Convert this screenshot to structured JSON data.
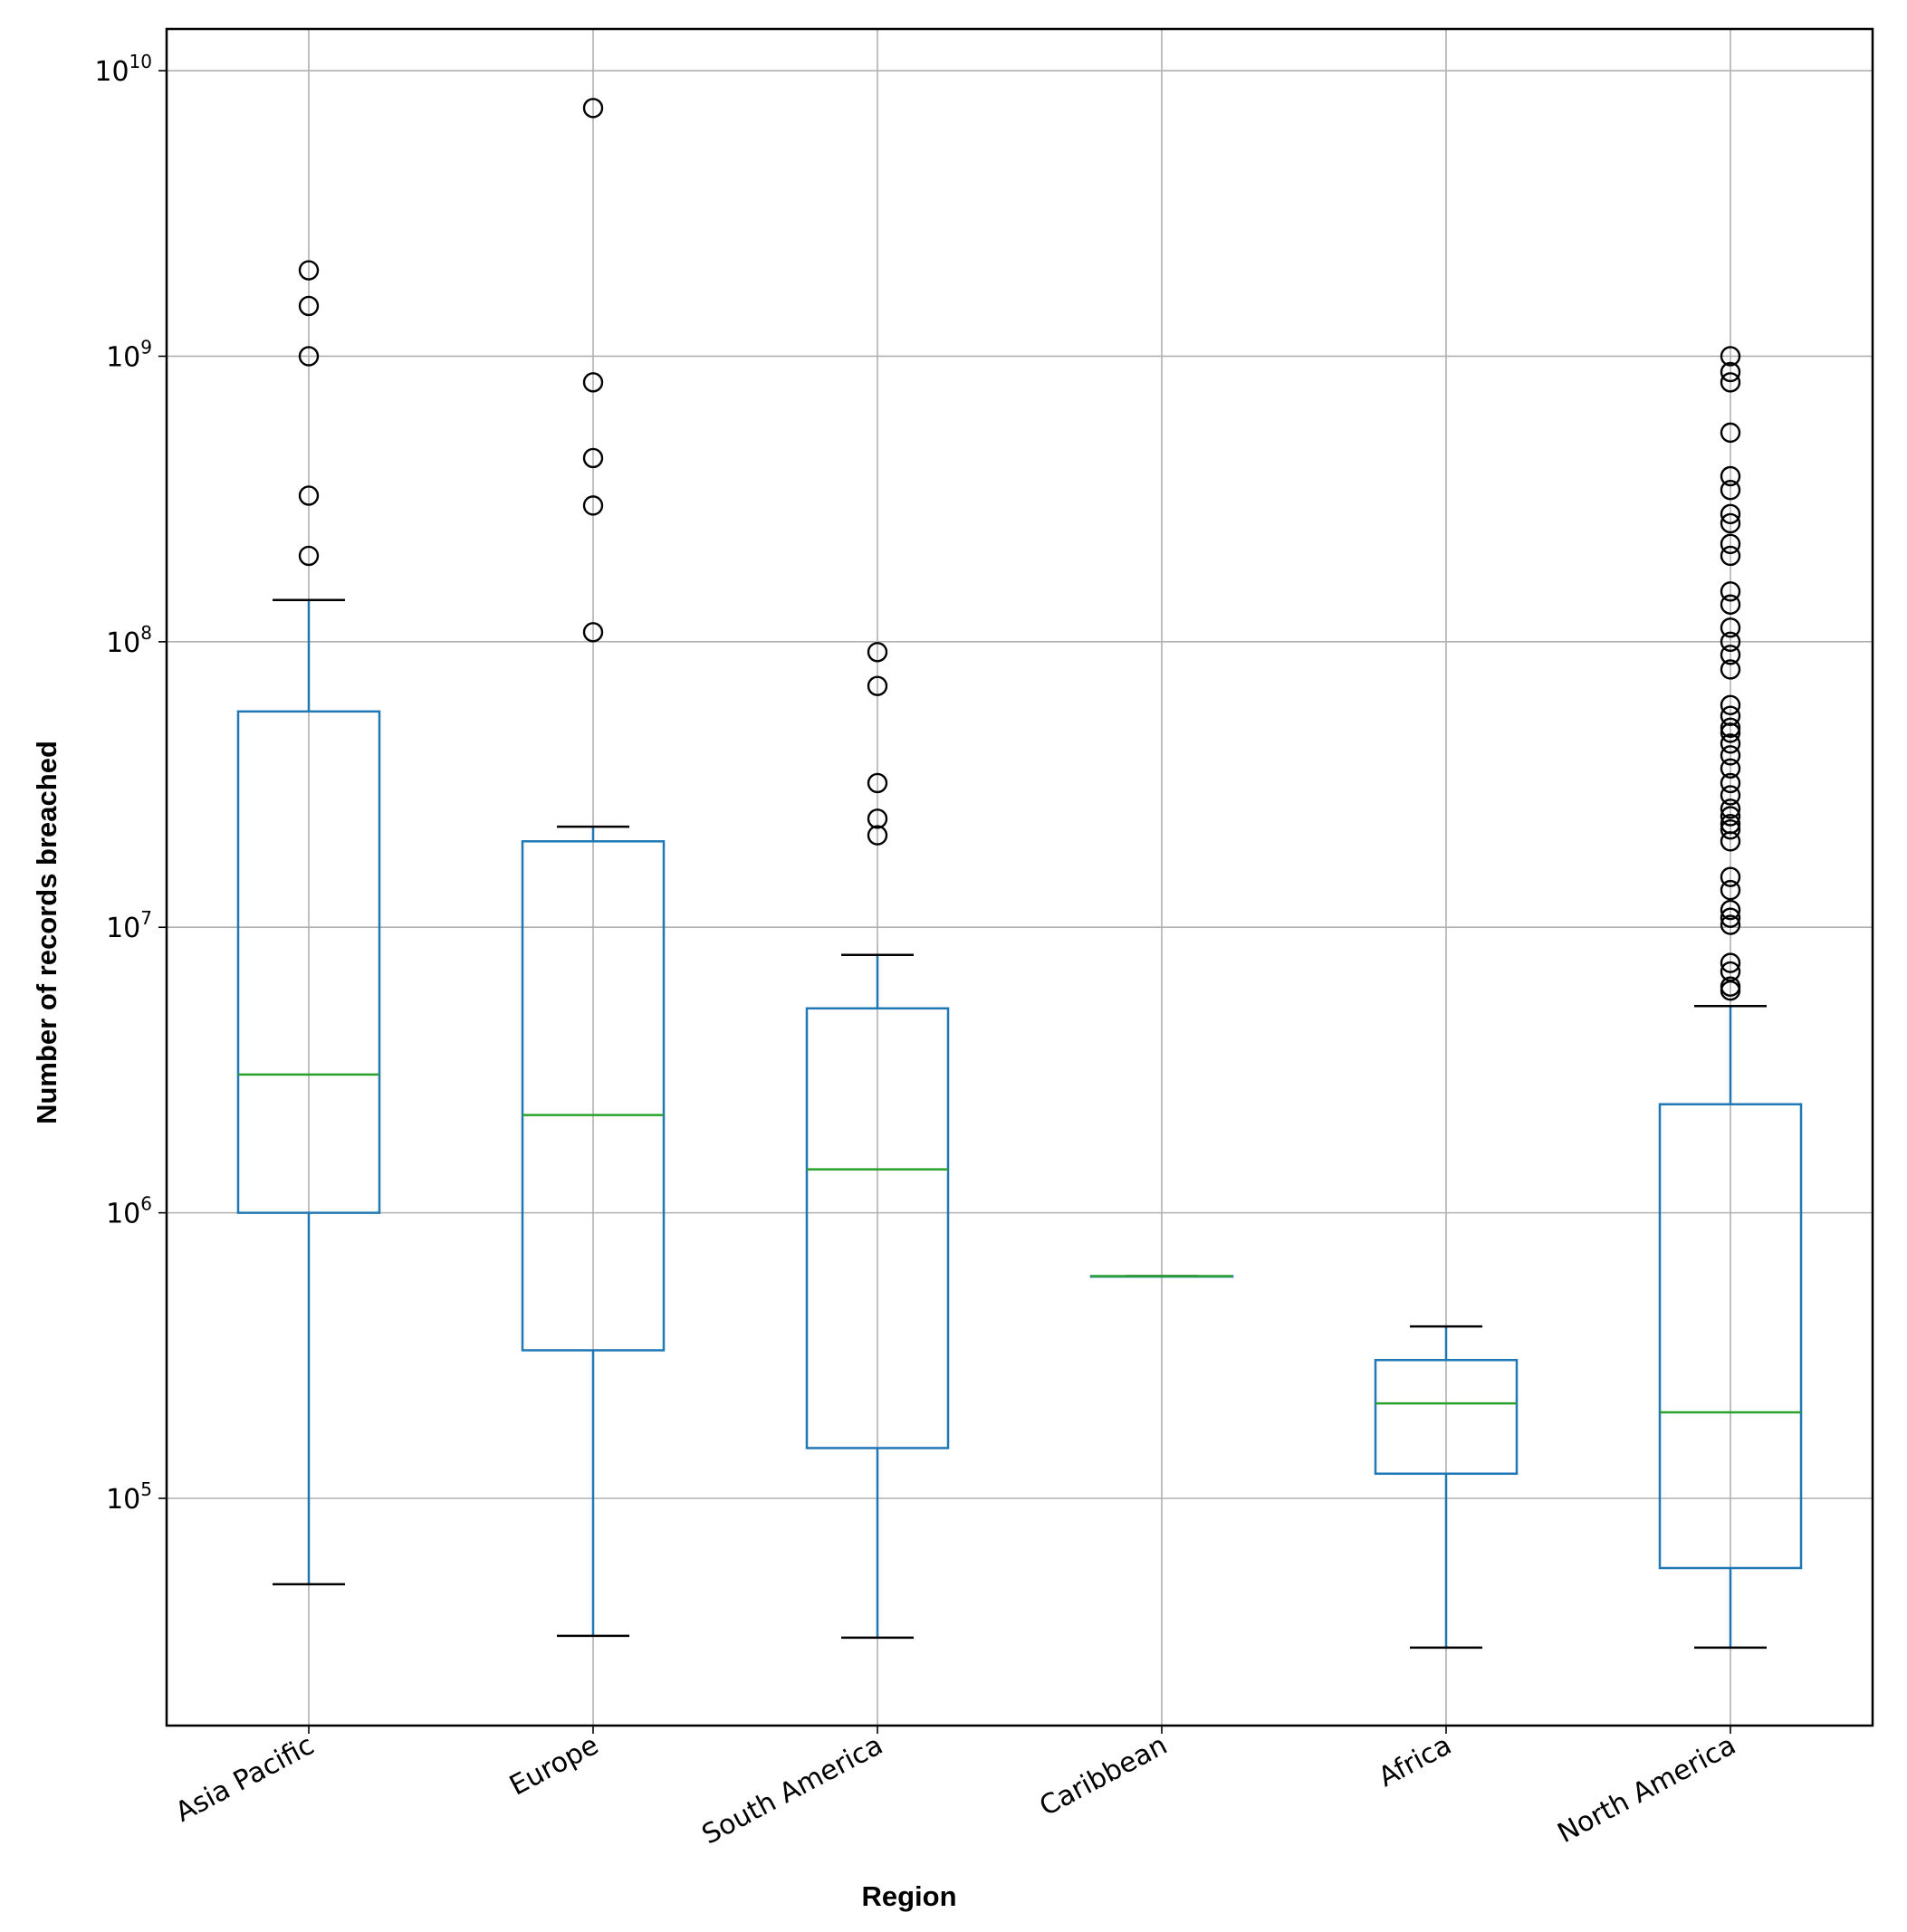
{
  "chart_data": {
    "type": "boxplot",
    "title": "",
    "xlabel": "Region",
    "ylabel": "Number of records breached",
    "yscale": "log",
    "ylim": [
      16000,
      14000000000
    ],
    "grid": true,
    "y_ticks": [
      {
        "value": 100000,
        "base": "10",
        "exp": "5"
      },
      {
        "value": 1000000,
        "base": "10",
        "exp": "6"
      },
      {
        "value": 10000000,
        "base": "10",
        "exp": "7"
      },
      {
        "value": 100000000,
        "base": "10",
        "exp": "8"
      },
      {
        "value": 1000000000,
        "base": "10",
        "exp": "9"
      },
      {
        "value": 10000000000,
        "base": "10",
        "exp": "10"
      }
    ],
    "categories": [
      "Asia Pacific",
      "Europe",
      "South America",
      "Caribbean",
      "Africa",
      "North America"
    ],
    "boxes": [
      {
        "name": "Asia Pacific",
        "whisker_low": 50000,
        "q1": 1000000,
        "median": 3050000,
        "q3": 57000000,
        "whisker_high": 140000000,
        "outliers": [
          200000000,
          325000000,
          1000000000,
          1500000000,
          2000000000
        ]
      },
      {
        "name": "Europe",
        "whisker_low": 33000,
        "q1": 330000,
        "median": 2200000,
        "q3": 20000000,
        "whisker_high": 22500000,
        "outliers": [
          108000000,
          300000000,
          440000000,
          810000000,
          7400000000
        ]
      },
      {
        "name": "South America",
        "whisker_low": 32500,
        "q1": 150000,
        "median": 1420000,
        "q3": 5200000,
        "whisker_high": 8000000,
        "outliers": [
          21000000,
          24000000,
          32000000,
          70000000,
          92000000
        ]
      },
      {
        "name": "Caribbean",
        "whisker_low": 600000,
        "q1": 600000,
        "median": 600000,
        "q3": 600000,
        "whisker_high": 600000,
        "outliers": []
      },
      {
        "name": "Africa",
        "whisker_low": 30000,
        "q1": 122000,
        "median": 215000,
        "q3": 305000,
        "whisker_high": 400000,
        "outliers": []
      },
      {
        "name": "North America",
        "whisker_low": 30000,
        "q1": 57000,
        "median": 200000,
        "q3": 2400000,
        "whisker_high": 5300000,
        "outliers": [
          6000000,
          6200000,
          7000000,
          7500000,
          10200000,
          10800000,
          11500000,
          13500000,
          15000000,
          20000000,
          22000000,
          23000000,
          24500000,
          26000000,
          29000000,
          32000000,
          36000000,
          40000000,
          44000000,
          48000000,
          50000000,
          55000000,
          60000000,
          80000000,
          90000000,
          100000000,
          112000000,
          135000000,
          150000000,
          200000000,
          220000000,
          260000000,
          280000000,
          340000000,
          380000000,
          540000000,
          810000000,
          880000000,
          1000000000
        ]
      }
    ],
    "colors": {
      "box": "#1f77b4",
      "median": "#2ca02c",
      "outlier_edge": "#000000",
      "cap": "#000000",
      "grid": "#b0b0b0",
      "frame": "#000000"
    }
  }
}
